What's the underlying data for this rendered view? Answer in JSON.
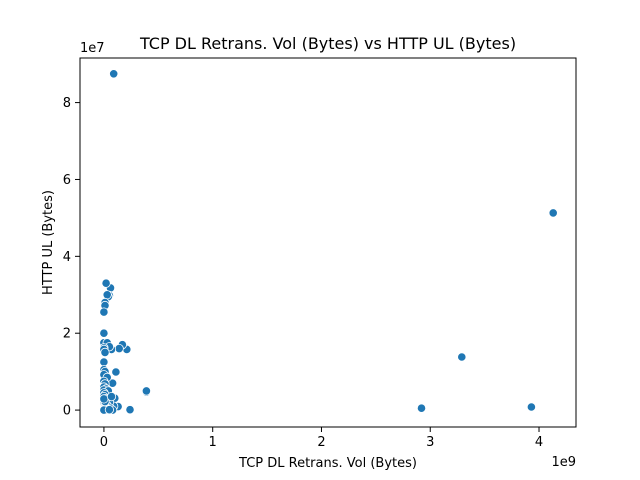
{
  "chart_data": {
    "type": "scatter",
    "title": "TCP DL Retrans. Vol (Bytes) vs HTTP UL (Bytes)",
    "xlabel": "TCP DL Retrans. Vol (Bytes)",
    "ylabel": "HTTP UL (Bytes)",
    "x_offset_label": "1e9",
    "y_offset_label": "1e7",
    "xlim": [
      -220000000.0,
      4340000000.0
    ],
    "ylim": [
      -4400000.0,
      91600000.0
    ],
    "x_ticks": [
      0,
      1000000000.0,
      2000000000.0,
      3000000000.0,
      4000000000.0
    ],
    "x_tick_labels": [
      "0",
      "1",
      "2",
      "3",
      "4"
    ],
    "y_ticks": [
      0,
      20000000.0,
      40000000.0,
      60000000.0,
      80000000.0
    ],
    "y_tick_labels": [
      "0",
      "2",
      "4",
      "6",
      "8"
    ],
    "grid": false,
    "marker_color": "#1f77b4",
    "points": [
      {
        "x": 90000000.0,
        "y": 87500000.0
      },
      {
        "x": 4130000000.0,
        "y": 51300000.0
      },
      {
        "x": 3290000000.0,
        "y": 13800000.0
      },
      {
        "x": 2920000000.0,
        "y": 500000.0
      },
      {
        "x": 3930000000.0,
        "y": 800000.0
      },
      {
        "x": 390000000.0,
        "y": 4700000.0
      },
      {
        "x": 390000000.0,
        "y": 5000000.0
      },
      {
        "x": 240000000.0,
        "y": 100000.0
      },
      {
        "x": 210000000.0,
        "y": 15800000.0
      },
      {
        "x": 170000000.0,
        "y": 17000000.0
      },
      {
        "x": 140000000.0,
        "y": 16000000.0
      },
      {
        "x": 130000000.0,
        "y": 900000.0
      },
      {
        "x": 110000000.0,
        "y": 9900000.0
      },
      {
        "x": 100000000.0,
        "y": 3100000.0
      },
      {
        "x": 90000000.0,
        "y": 1000000.0
      },
      {
        "x": 80000000.0,
        "y": 7000000.0
      },
      {
        "x": 70000000.0,
        "y": 15800000.0
      },
      {
        "x": 60000000.0,
        "y": 31800000.0
      },
      {
        "x": 50000000.0,
        "y": 29800000.0
      },
      {
        "x": 40000000.0,
        "y": 29500000.0
      },
      {
        "x": 30000000.0,
        "y": 30000000.0
      },
      {
        "x": 20000000.0,
        "y": 33000000.0
      },
      {
        "x": 10000000.0,
        "y": 28000000.0
      },
      {
        "x": 10000000.0,
        "y": 27200000.0
      },
      {
        "x": 0,
        "y": 25500000.0
      },
      {
        "x": 0,
        "y": 20000000.0
      },
      {
        "x": 0,
        "y": 17500000.0
      },
      {
        "x": 30000000.0,
        "y": 17500000.0
      },
      {
        "x": 50000000.0,
        "y": 16500000.0
      },
      {
        "x": 0,
        "y": 16200000.0
      },
      {
        "x": 0,
        "y": 15800000.0
      },
      {
        "x": 10000000.0,
        "y": 15000000.0
      },
      {
        "x": 0,
        "y": 12500000.0
      },
      {
        "x": 0,
        "y": 10500000.0
      },
      {
        "x": 10000000.0,
        "y": 10000000.0
      },
      {
        "x": 0,
        "y": 9200000.0
      },
      {
        "x": 30000000.0,
        "y": 8500000.0
      },
      {
        "x": 0,
        "y": 7500000.0
      },
      {
        "x": 10000000.0,
        "y": 6800000.0
      },
      {
        "x": 0,
        "y": 6000000.0
      },
      {
        "x": 20000000.0,
        "y": 5500000.0
      },
      {
        "x": 0,
        "y": 5200000.0
      },
      {
        "x": 40000000.0,
        "y": 5000000.0
      },
      {
        "x": 0,
        "y": 4500000.0
      },
      {
        "x": 10000000.0,
        "y": 4000000.0
      },
      {
        "x": 0,
        "y": 3500000.0
      },
      {
        "x": 20000000.0,
        "y": 3000000.0
      },
      {
        "x": 0,
        "y": 2500000.0
      },
      {
        "x": 50000000.0,
        "y": 2000000.0
      },
      {
        "x": 0,
        "y": 1800000.0
      },
      {
        "x": 10000000.0,
        "y": 1500000.0
      },
      {
        "x": 30000000.0,
        "y": 1200000.0
      },
      {
        "x": 0,
        "y": 1000000.0
      },
      {
        "x": 20000000.0,
        "y": 800000.0
      },
      {
        "x": 0,
        "y": 600000.0
      },
      {
        "x": 60000000.0,
        "y": 500000.0
      },
      {
        "x": 0,
        "y": 400000.0
      },
      {
        "x": 10000000.0,
        "y": 300000.0
      },
      {
        "x": 40000000.0,
        "y": 200000.0
      },
      {
        "x": 0,
        "y": 100000.0
      },
      {
        "x": 20000000.0,
        "y": 0
      },
      {
        "x": 0,
        "y": 0
      },
      {
        "x": 80000000.0,
        "y": 0
      },
      {
        "x": 50000000.0,
        "y": 100000.0
      },
      {
        "x": 10000000.0,
        "y": 2200000.0
      },
      {
        "x": 0,
        "y": 2900000.0
      },
      {
        "x": 70000000.0,
        "y": 3500000.0
      }
    ]
  }
}
